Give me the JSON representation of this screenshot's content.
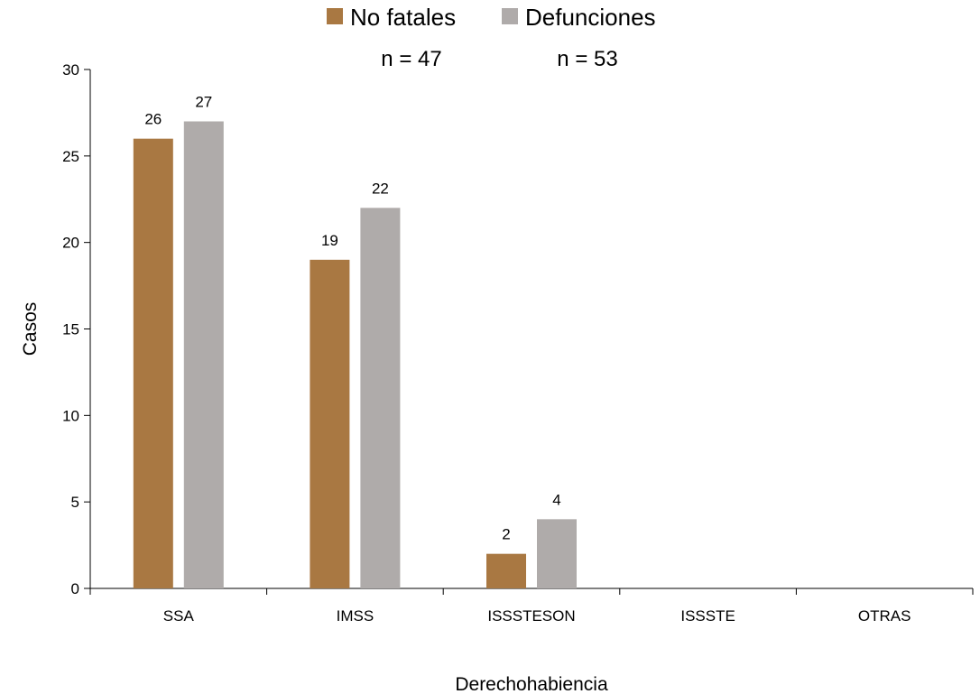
{
  "chart_data": {
    "type": "bar",
    "categories": [
      "SSA",
      "IMSS",
      "ISSSTESON",
      "ISSSTE",
      "OTRAS"
    ],
    "series": [
      {
        "name": "No fatales",
        "values": [
          26,
          19,
          2,
          0,
          0
        ],
        "color": "#A97842",
        "n_label": "n = 47"
      },
      {
        "name": "Defunciones",
        "values": [
          27,
          22,
          4,
          0,
          0
        ],
        "color": "#AFABAA",
        "n_label": "n = 53"
      }
    ],
    "data_labels": [
      [
        "26",
        "19",
        "2",
        "",
        ""
      ],
      [
        "27",
        "22",
        "4",
        "",
        ""
      ]
    ],
    "xlabel": "Derechohabiencia",
    "ylabel": "Casos",
    "ylim": [
      0,
      30
    ],
    "yticks": [
      0,
      5,
      10,
      15,
      20,
      25,
      30
    ],
    "grid": false,
    "legend_position": "top-center"
  }
}
